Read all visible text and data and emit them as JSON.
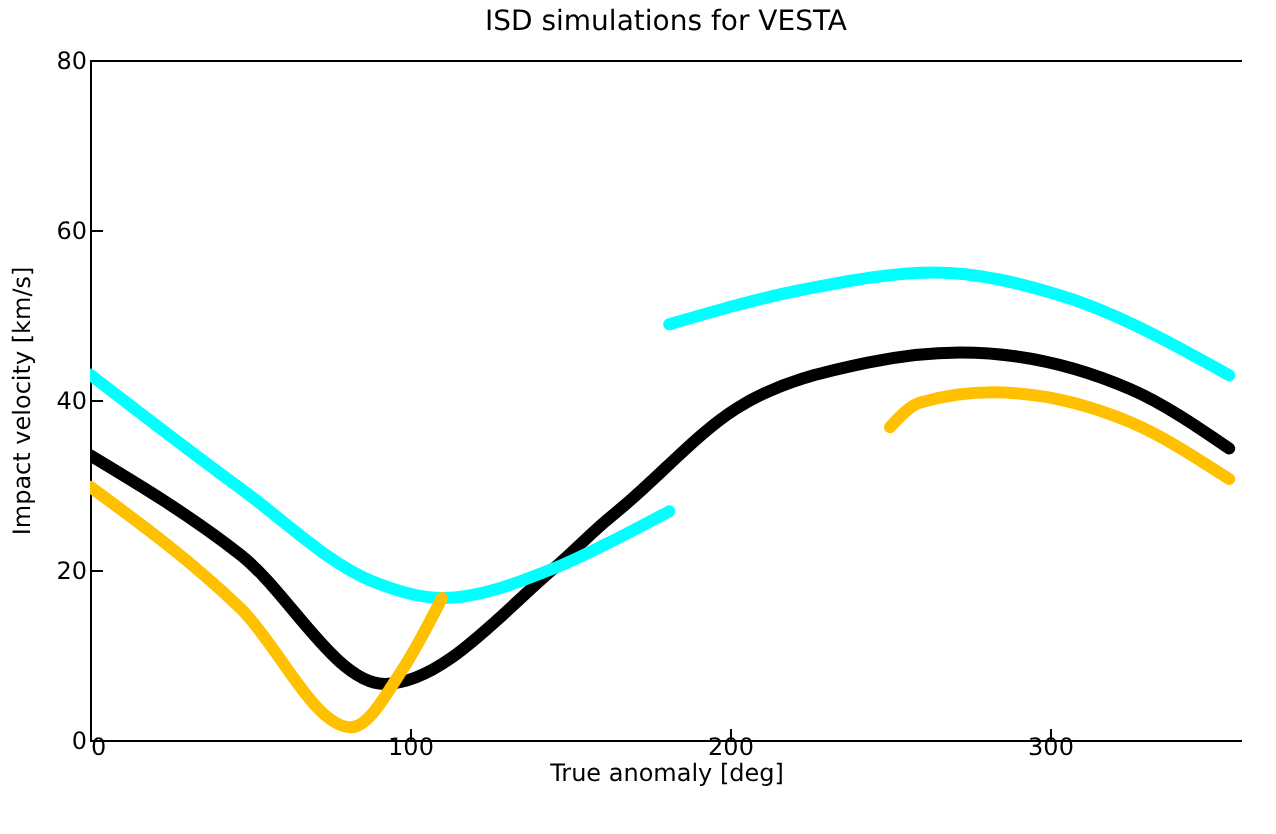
{
  "chart_data": {
    "type": "line",
    "title": "ISD simulations for VESTA",
    "xlabel": "True anomaly [deg]",
    "ylabel": "Impact velocity  [km/s]",
    "xlim": [
      0,
      360
    ],
    "ylim": [
      0,
      80
    ],
    "xticks": [
      0,
      100,
      200,
      300
    ],
    "yticks": [
      0,
      20,
      40,
      60,
      80
    ],
    "grid": false,
    "line_style": "solid",
    "series": [
      {
        "color": "#000000",
        "x": [
          0,
          47,
          92,
          145,
          161,
          167,
          202,
          243,
          272,
          325,
          356
        ],
        "values": [
          33.5,
          21.8,
          6.6,
          20.2,
          25.7,
          27.6,
          39,
          44.4,
          45.6,
          41.3,
          34.3
        ]
      },
      {
        "color": "#00ffff",
        "x": [
          0,
          47,
          88,
          110,
          145,
          161,
          181
        ],
        "values": [
          43,
          29.6,
          18.7,
          16.7,
          20.2,
          23,
          26.9
        ]
      },
      {
        "color": "#00ffff",
        "x": [
          181,
          223,
          264,
          304,
          356
        ],
        "values": [
          48.9,
          53,
          55,
          52.2,
          42.9
        ]
      },
      {
        "color": "#ffc000",
        "x": [
          0,
          47,
          81.6,
          98,
          110
        ],
        "values": [
          29.8,
          15.5,
          1.5,
          8.5,
          16.7
        ]
      },
      {
        "color": "#ffc000",
        "x": [
          250,
          259.5,
          282,
          325,
          356
        ],
        "values": [
          36.8,
          39.7,
          40.9,
          37.4,
          30.7
        ]
      }
    ]
  }
}
